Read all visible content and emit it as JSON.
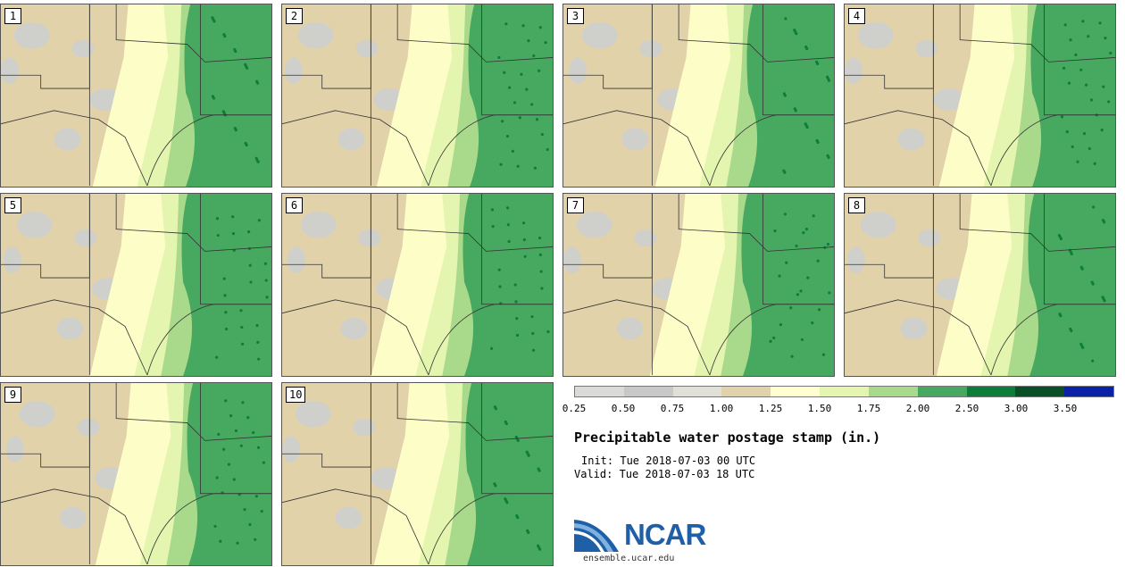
{
  "panels": [
    {
      "label": "1",
      "green_edge": 0.7
    },
    {
      "label": "2",
      "green_edge": 0.71
    },
    {
      "label": "3",
      "green_edge": 0.7
    },
    {
      "label": "4",
      "green_edge": 0.71
    },
    {
      "label": "5",
      "green_edge": 0.69
    },
    {
      "label": "6",
      "green_edge": 0.69
    },
    {
      "label": "7",
      "green_edge": 0.68
    },
    {
      "label": "8",
      "green_edge": 0.7
    },
    {
      "label": "9",
      "green_edge": 0.71
    },
    {
      "label": "10",
      "green_edge": 0.7
    }
  ],
  "colorbar": {
    "colors": [
      "#dadad8",
      "#c8c8c8",
      "#e0e0d8",
      "#e2d2a9",
      "#ffffd0",
      "#e4f5b0",
      "#a9d98a",
      "#47a860",
      "#0d7d3a",
      "#0a4f26",
      "#0b22a8"
    ],
    "ticks": [
      "0.25",
      "0.50",
      "0.75",
      "1.00",
      "1.25",
      "1.50",
      "1.75",
      "2.00",
      "2.50",
      "3.00",
      "3.50"
    ]
  },
  "title": "Precipitable water postage stamp (in.)",
  "init": "Init: Tue 2018-07-03 00 UTC",
  "valid": "Valid: Tue 2018-07-03 18 UTC",
  "logo": {
    "text": "NCAR",
    "url": "ensemble.ucar.edu"
  }
}
